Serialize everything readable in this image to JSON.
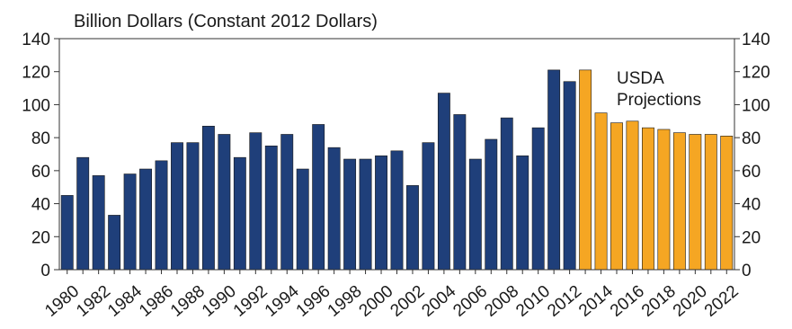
{
  "chart_data": {
    "type": "bar",
    "title": "Billion Dollars (Constant 2012 Dollars)",
    "xlabel": "",
    "ylabel": "",
    "ylim": [
      0,
      140
    ],
    "yticks": [
      0,
      20,
      40,
      60,
      80,
      100,
      120,
      140
    ],
    "grid": false,
    "secondary_y_axis": true,
    "categories": [
      "1980",
      "1981",
      "1982",
      "1983",
      "1984",
      "1985",
      "1986",
      "1987",
      "1988",
      "1989",
      "1990",
      "1991",
      "1992",
      "1993",
      "1994",
      "1995",
      "1996",
      "1997",
      "1998",
      "1999",
      "2000",
      "2001",
      "2002",
      "2003",
      "2004",
      "2005",
      "2006",
      "2007",
      "2008",
      "2009",
      "2010",
      "2011",
      "2012",
      "2013",
      "2014",
      "2015",
      "2016",
      "2017",
      "2018",
      "2019",
      "2020",
      "2021",
      "2022"
    ],
    "x_tick_labels": [
      "1980",
      "1982",
      "1984",
      "1986",
      "1988",
      "1990",
      "1992",
      "1994",
      "1996",
      "1998",
      "2000",
      "2002",
      "2004",
      "2006",
      "2008",
      "2010",
      "2012",
      "2014",
      "2016",
      "2018",
      "2020",
      "2022"
    ],
    "series": [
      {
        "name": "",
        "color": "#1f3f7a",
        "values": [
          45,
          68,
          57,
          33,
          58,
          61,
          66,
          77,
          77,
          87,
          82,
          68,
          83,
          75,
          82,
          61,
          88,
          74,
          67,
          67,
          69,
          72,
          51,
          77,
          107,
          94,
          67,
          79,
          92,
          69,
          86,
          121,
          114,
          null,
          null,
          null,
          null,
          null,
          null,
          null,
          null,
          null,
          null
        ]
      },
      {
        "name": "USDA Projections",
        "color": "#f5a623",
        "values": [
          null,
          null,
          null,
          null,
          null,
          null,
          null,
          null,
          null,
          null,
          null,
          null,
          null,
          null,
          null,
          null,
          null,
          null,
          null,
          null,
          null,
          null,
          null,
          null,
          null,
          null,
          null,
          null,
          null,
          null,
          null,
          null,
          null,
          121,
          95,
          89,
          90,
          86,
          85,
          83,
          82,
          82,
          81
        ]
      }
    ],
    "annotation": {
      "lines": [
        "USDA",
        "Projections"
      ]
    }
  }
}
